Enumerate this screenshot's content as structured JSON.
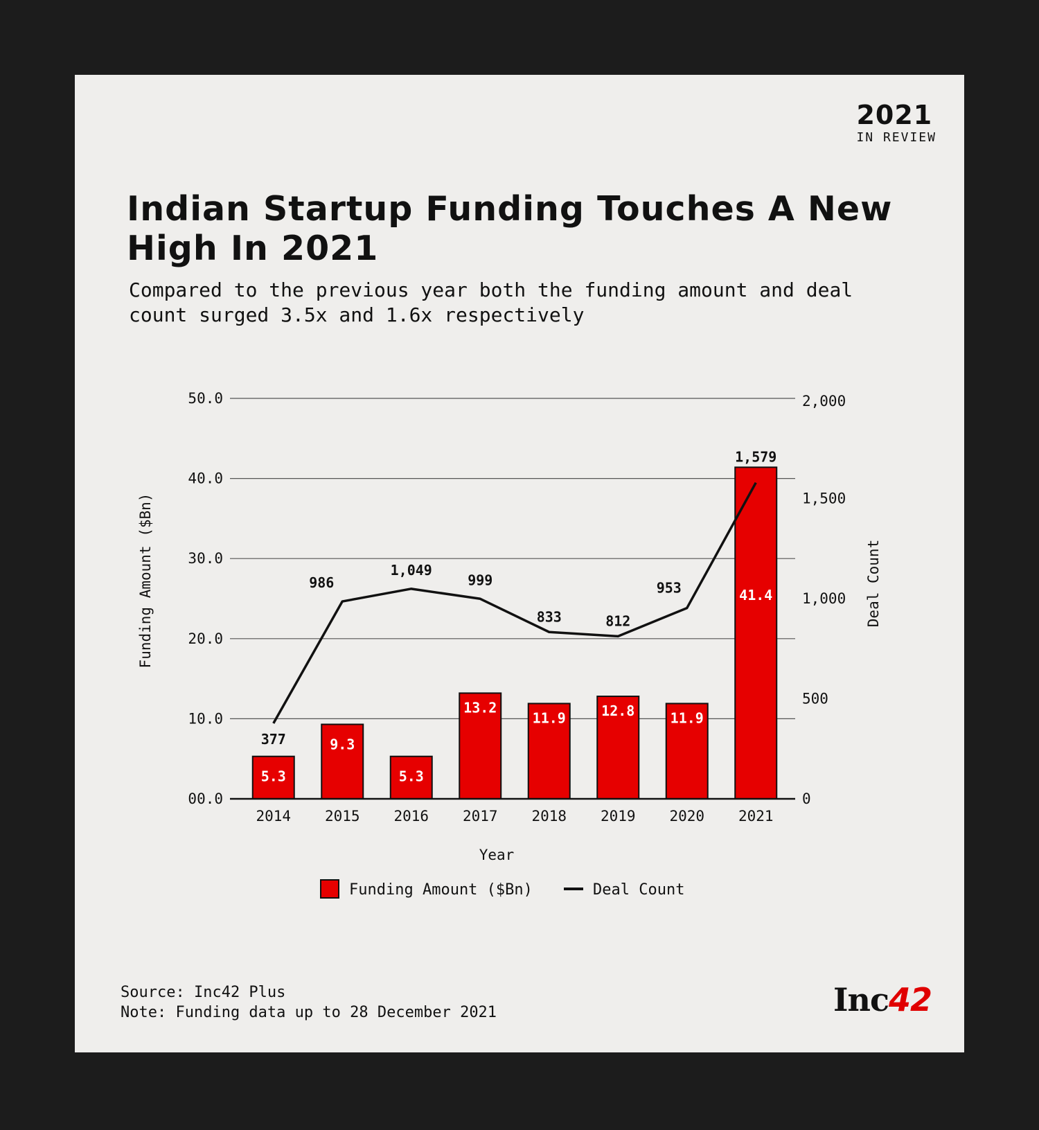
{
  "badge": {
    "year": "2021",
    "label": "IN REVIEW"
  },
  "header": {
    "title": "Indian Startup Funding Touches A New High In 2021",
    "subtitle": "Compared to the previous year both the funding amount and deal count surged 3.5x and 1.6x respectively"
  },
  "footer": {
    "source": "Source: Inc42 Plus",
    "note": "Note: Funding data up to 28 December 2021"
  },
  "logo": {
    "text": "Inc",
    "number": "42"
  },
  "chart_data": {
    "type": "bar",
    "title": "Indian Startup Funding Touches A New High In 2021",
    "xlabel": "Year",
    "ylabel": "Funding Amount ($Bn)",
    "y2label": "Deal Count",
    "categories": [
      "2014",
      "2015",
      "2016",
      "2017",
      "2018",
      "2019",
      "2020",
      "2021"
    ],
    "ylim": [
      0,
      50
    ],
    "y2lim": [
      0,
      2000
    ],
    "y_ticks": [
      "00.0",
      "10.0",
      "20.0",
      "30.0",
      "40.0",
      "50.0"
    ],
    "y_tick_values": [
      0,
      10,
      20,
      30,
      40,
      50
    ],
    "y2_ticks": [
      "0",
      "500",
      "1,000",
      "1,500",
      "2,000"
    ],
    "y2_tick_values": [
      0,
      500,
      1000,
      1500,
      2000
    ],
    "grid": true,
    "legend_position": "bottom-center",
    "series": [
      {
        "name": "Funding Amount ($Bn)",
        "type": "bar",
        "axis": "left",
        "color": "#e60000",
        "values": [
          5.3,
          9.3,
          5.3,
          13.2,
          11.9,
          12.8,
          11.9,
          41.4
        ],
        "labels": [
          "5.3",
          "9.3",
          "5.3",
          "13.2",
          "11.9",
          "12.8",
          "11.9",
          "41.4"
        ]
      },
      {
        "name": "Deal Count",
        "type": "line",
        "axis": "right",
        "color": "#111111",
        "values": [
          377,
          986,
          1049,
          999,
          833,
          812,
          953,
          1579
        ],
        "labels": [
          "377",
          "986",
          "1,049",
          "999",
          "833",
          "812",
          "953",
          "1,579"
        ]
      }
    ]
  }
}
